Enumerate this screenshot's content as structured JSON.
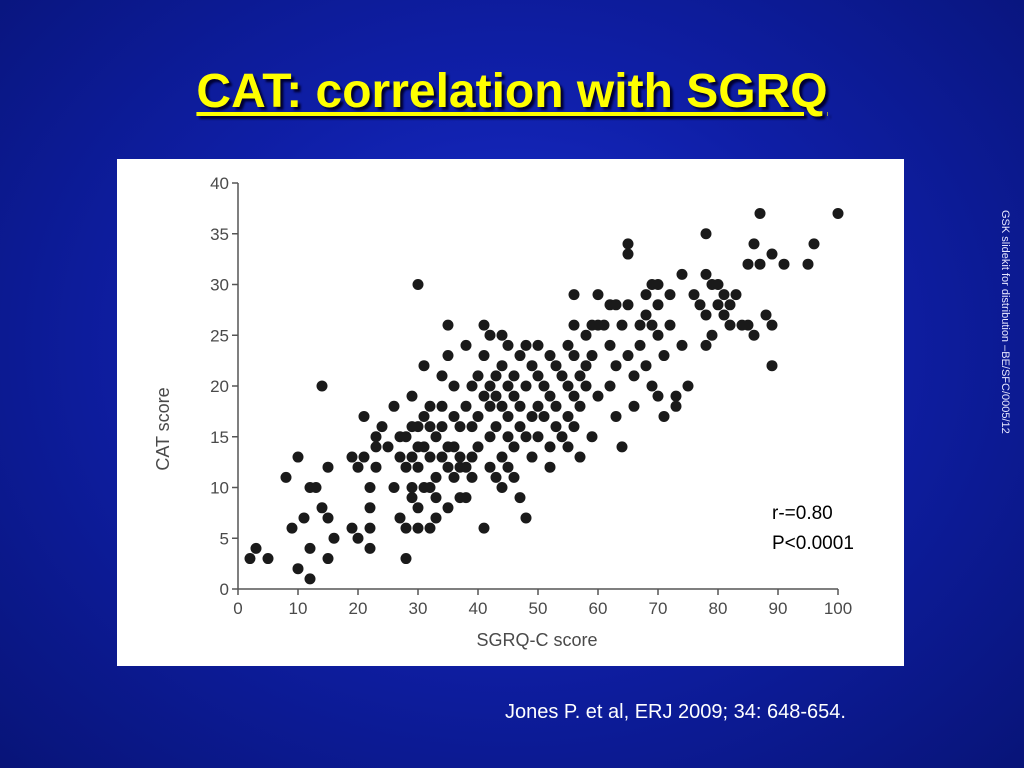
{
  "slide": {
    "title": "CAT: correlation with SGRQ",
    "watermark": "GSK slidekit for distribution –BE/SFC/0005/12",
    "citation": "Jones P. et al, ERJ 2009; 34: 648-654.",
    "colors": {
      "background": "#0f1fa8",
      "title": "#ffff00",
      "text": "#ffffff",
      "points": "#1a1a1a"
    }
  },
  "chart_data": {
    "type": "scatter",
    "xlabel": "SGRQ-C score",
    "ylabel": "CAT score",
    "xlim": [
      0,
      100
    ],
    "ylim": [
      0,
      40
    ],
    "xticks": [
      0,
      10,
      20,
      30,
      40,
      50,
      60,
      70,
      80,
      90,
      100
    ],
    "yticks": [
      0,
      5,
      10,
      15,
      20,
      25,
      30,
      35,
      40
    ],
    "grid": false,
    "annotation": [
      "r-=0.80",
      "P<0.0001"
    ],
    "points": [
      [
        2,
        3
      ],
      [
        3,
        4
      ],
      [
        5,
        3
      ],
      [
        8,
        11
      ],
      [
        9,
        6
      ],
      [
        10,
        2
      ],
      [
        10,
        13
      ],
      [
        11,
        7
      ],
      [
        12,
        10
      ],
      [
        12,
        4
      ],
      [
        12,
        1
      ],
      [
        13,
        10
      ],
      [
        14,
        20
      ],
      [
        14,
        8
      ],
      [
        15,
        12
      ],
      [
        15,
        7
      ],
      [
        15,
        3
      ],
      [
        16,
        5
      ],
      [
        19,
        6
      ],
      [
        19,
        13
      ],
      [
        20,
        12
      ],
      [
        20,
        5
      ],
      [
        21,
        13
      ],
      [
        21,
        17
      ],
      [
        22,
        6
      ],
      [
        22,
        4
      ],
      [
        22,
        10
      ],
      [
        22,
        8
      ],
      [
        23,
        15
      ],
      [
        23,
        14
      ],
      [
        23,
        12
      ],
      [
        24,
        16
      ],
      [
        25,
        14
      ],
      [
        26,
        10
      ],
      [
        26,
        18
      ],
      [
        27,
        7
      ],
      [
        27,
        13
      ],
      [
        27,
        15
      ],
      [
        28,
        3
      ],
      [
        28,
        6
      ],
      [
        28,
        12
      ],
      [
        28,
        15
      ],
      [
        29,
        10
      ],
      [
        29,
        13
      ],
      [
        29,
        16
      ],
      [
        29,
        19
      ],
      [
        29,
        9
      ],
      [
        30,
        30
      ],
      [
        30,
        14
      ],
      [
        30,
        12
      ],
      [
        30,
        8
      ],
      [
        30,
        6
      ],
      [
        30,
        16
      ],
      [
        31,
        22
      ],
      [
        31,
        17
      ],
      [
        31,
        10
      ],
      [
        31,
        14
      ],
      [
        32,
        13
      ],
      [
        32,
        10
      ],
      [
        32,
        18
      ],
      [
        32,
        6
      ],
      [
        32,
        16
      ],
      [
        33,
        15
      ],
      [
        33,
        11
      ],
      [
        33,
        9
      ],
      [
        33,
        7
      ],
      [
        34,
        16
      ],
      [
        34,
        13
      ],
      [
        34,
        18
      ],
      [
        34,
        21
      ],
      [
        35,
        26
      ],
      [
        35,
        23
      ],
      [
        35,
        14
      ],
      [
        35,
        12
      ],
      [
        35,
        8
      ],
      [
        36,
        11
      ],
      [
        36,
        14
      ],
      [
        36,
        17
      ],
      [
        36,
        20
      ],
      [
        37,
        12
      ],
      [
        37,
        9
      ],
      [
        37,
        16
      ],
      [
        37,
        13
      ],
      [
        38,
        24
      ],
      [
        38,
        18
      ],
      [
        38,
        12
      ],
      [
        38,
        9
      ],
      [
        39,
        13
      ],
      [
        39,
        16
      ],
      [
        39,
        20
      ],
      [
        39,
        11
      ],
      [
        40,
        21
      ],
      [
        40,
        17
      ],
      [
        40,
        14
      ],
      [
        41,
        6
      ],
      [
        41,
        19
      ],
      [
        41,
        23
      ],
      [
        41,
        26
      ],
      [
        42,
        15
      ],
      [
        42,
        18
      ],
      [
        42,
        20
      ],
      [
        42,
        25
      ],
      [
        42,
        12
      ],
      [
        43,
        19
      ],
      [
        43,
        16
      ],
      [
        43,
        11
      ],
      [
        43,
        21
      ],
      [
        44,
        13
      ],
      [
        44,
        18
      ],
      [
        44,
        22
      ],
      [
        44,
        25
      ],
      [
        44,
        10
      ],
      [
        45,
        15
      ],
      [
        45,
        20
      ],
      [
        45,
        24
      ],
      [
        45,
        17
      ],
      [
        45,
        12
      ],
      [
        46,
        21
      ],
      [
        46,
        19
      ],
      [
        46,
        14
      ],
      [
        46,
        11
      ],
      [
        47,
        23
      ],
      [
        47,
        18
      ],
      [
        47,
        16
      ],
      [
        47,
        9
      ],
      [
        48,
        24
      ],
      [
        48,
        20
      ],
      [
        48,
        15
      ],
      [
        48,
        7
      ],
      [
        49,
        22
      ],
      [
        49,
        17
      ],
      [
        49,
        13
      ],
      [
        50,
        24
      ],
      [
        50,
        21
      ],
      [
        50,
        18
      ],
      [
        50,
        15
      ],
      [
        51,
        20
      ],
      [
        51,
        17
      ],
      [
        52,
        23
      ],
      [
        52,
        19
      ],
      [
        52,
        14
      ],
      [
        52,
        12
      ],
      [
        53,
        22
      ],
      [
        53,
        18
      ],
      [
        53,
        16
      ],
      [
        54,
        15
      ],
      [
        54,
        21
      ],
      [
        55,
        20
      ],
      [
        55,
        17
      ],
      [
        55,
        14
      ],
      [
        55,
        24
      ],
      [
        56,
        29
      ],
      [
        56,
        26
      ],
      [
        56,
        23
      ],
      [
        56,
        19
      ],
      [
        56,
        16
      ],
      [
        57,
        21
      ],
      [
        57,
        13
      ],
      [
        57,
        18
      ],
      [
        58,
        25
      ],
      [
        58,
        22
      ],
      [
        58,
        20
      ],
      [
        59,
        26
      ],
      [
        59,
        15
      ],
      [
        59,
        23
      ],
      [
        60,
        29
      ],
      [
        60,
        26
      ],
      [
        60,
        19
      ],
      [
        61,
        26
      ],
      [
        62,
        24
      ],
      [
        62,
        20
      ],
      [
        62,
        28
      ],
      [
        63,
        28
      ],
      [
        63,
        22
      ],
      [
        63,
        17
      ],
      [
        64,
        14
      ],
      [
        64,
        26
      ],
      [
        65,
        34
      ],
      [
        65,
        33
      ],
      [
        65,
        28
      ],
      [
        65,
        23
      ],
      [
        66,
        21
      ],
      [
        66,
        18
      ],
      [
        67,
        26
      ],
      [
        67,
        24
      ],
      [
        68,
        29
      ],
      [
        68,
        27
      ],
      [
        68,
        22
      ],
      [
        69,
        30
      ],
      [
        69,
        26
      ],
      [
        69,
        20
      ],
      [
        70,
        30
      ],
      [
        70,
        28
      ],
      [
        70,
        25
      ],
      [
        70,
        19
      ],
      [
        71,
        17
      ],
      [
        71,
        23
      ],
      [
        72,
        29
      ],
      [
        72,
        26
      ],
      [
        73,
        18
      ],
      [
        73,
        19
      ],
      [
        74,
        24
      ],
      [
        74,
        31
      ],
      [
        75,
        20
      ],
      [
        76,
        29
      ],
      [
        77,
        28
      ],
      [
        78,
        35
      ],
      [
        78,
        31
      ],
      [
        78,
        27
      ],
      [
        78,
        24
      ],
      [
        79,
        30
      ],
      [
        79,
        25
      ],
      [
        80,
        30
      ],
      [
        80,
        28
      ],
      [
        81,
        29
      ],
      [
        81,
        27
      ],
      [
        82,
        28
      ],
      [
        82,
        26
      ],
      [
        83,
        29
      ],
      [
        84,
        26
      ],
      [
        85,
        32
      ],
      [
        85,
        26
      ],
      [
        86,
        34
      ],
      [
        86,
        25
      ],
      [
        87,
        37
      ],
      [
        87,
        32
      ],
      [
        88,
        27
      ],
      [
        89,
        33
      ],
      [
        89,
        26
      ],
      [
        89,
        22
      ],
      [
        91,
        32
      ],
      [
        95,
        32
      ],
      [
        96,
        34
      ],
      [
        100,
        37
      ]
    ]
  }
}
